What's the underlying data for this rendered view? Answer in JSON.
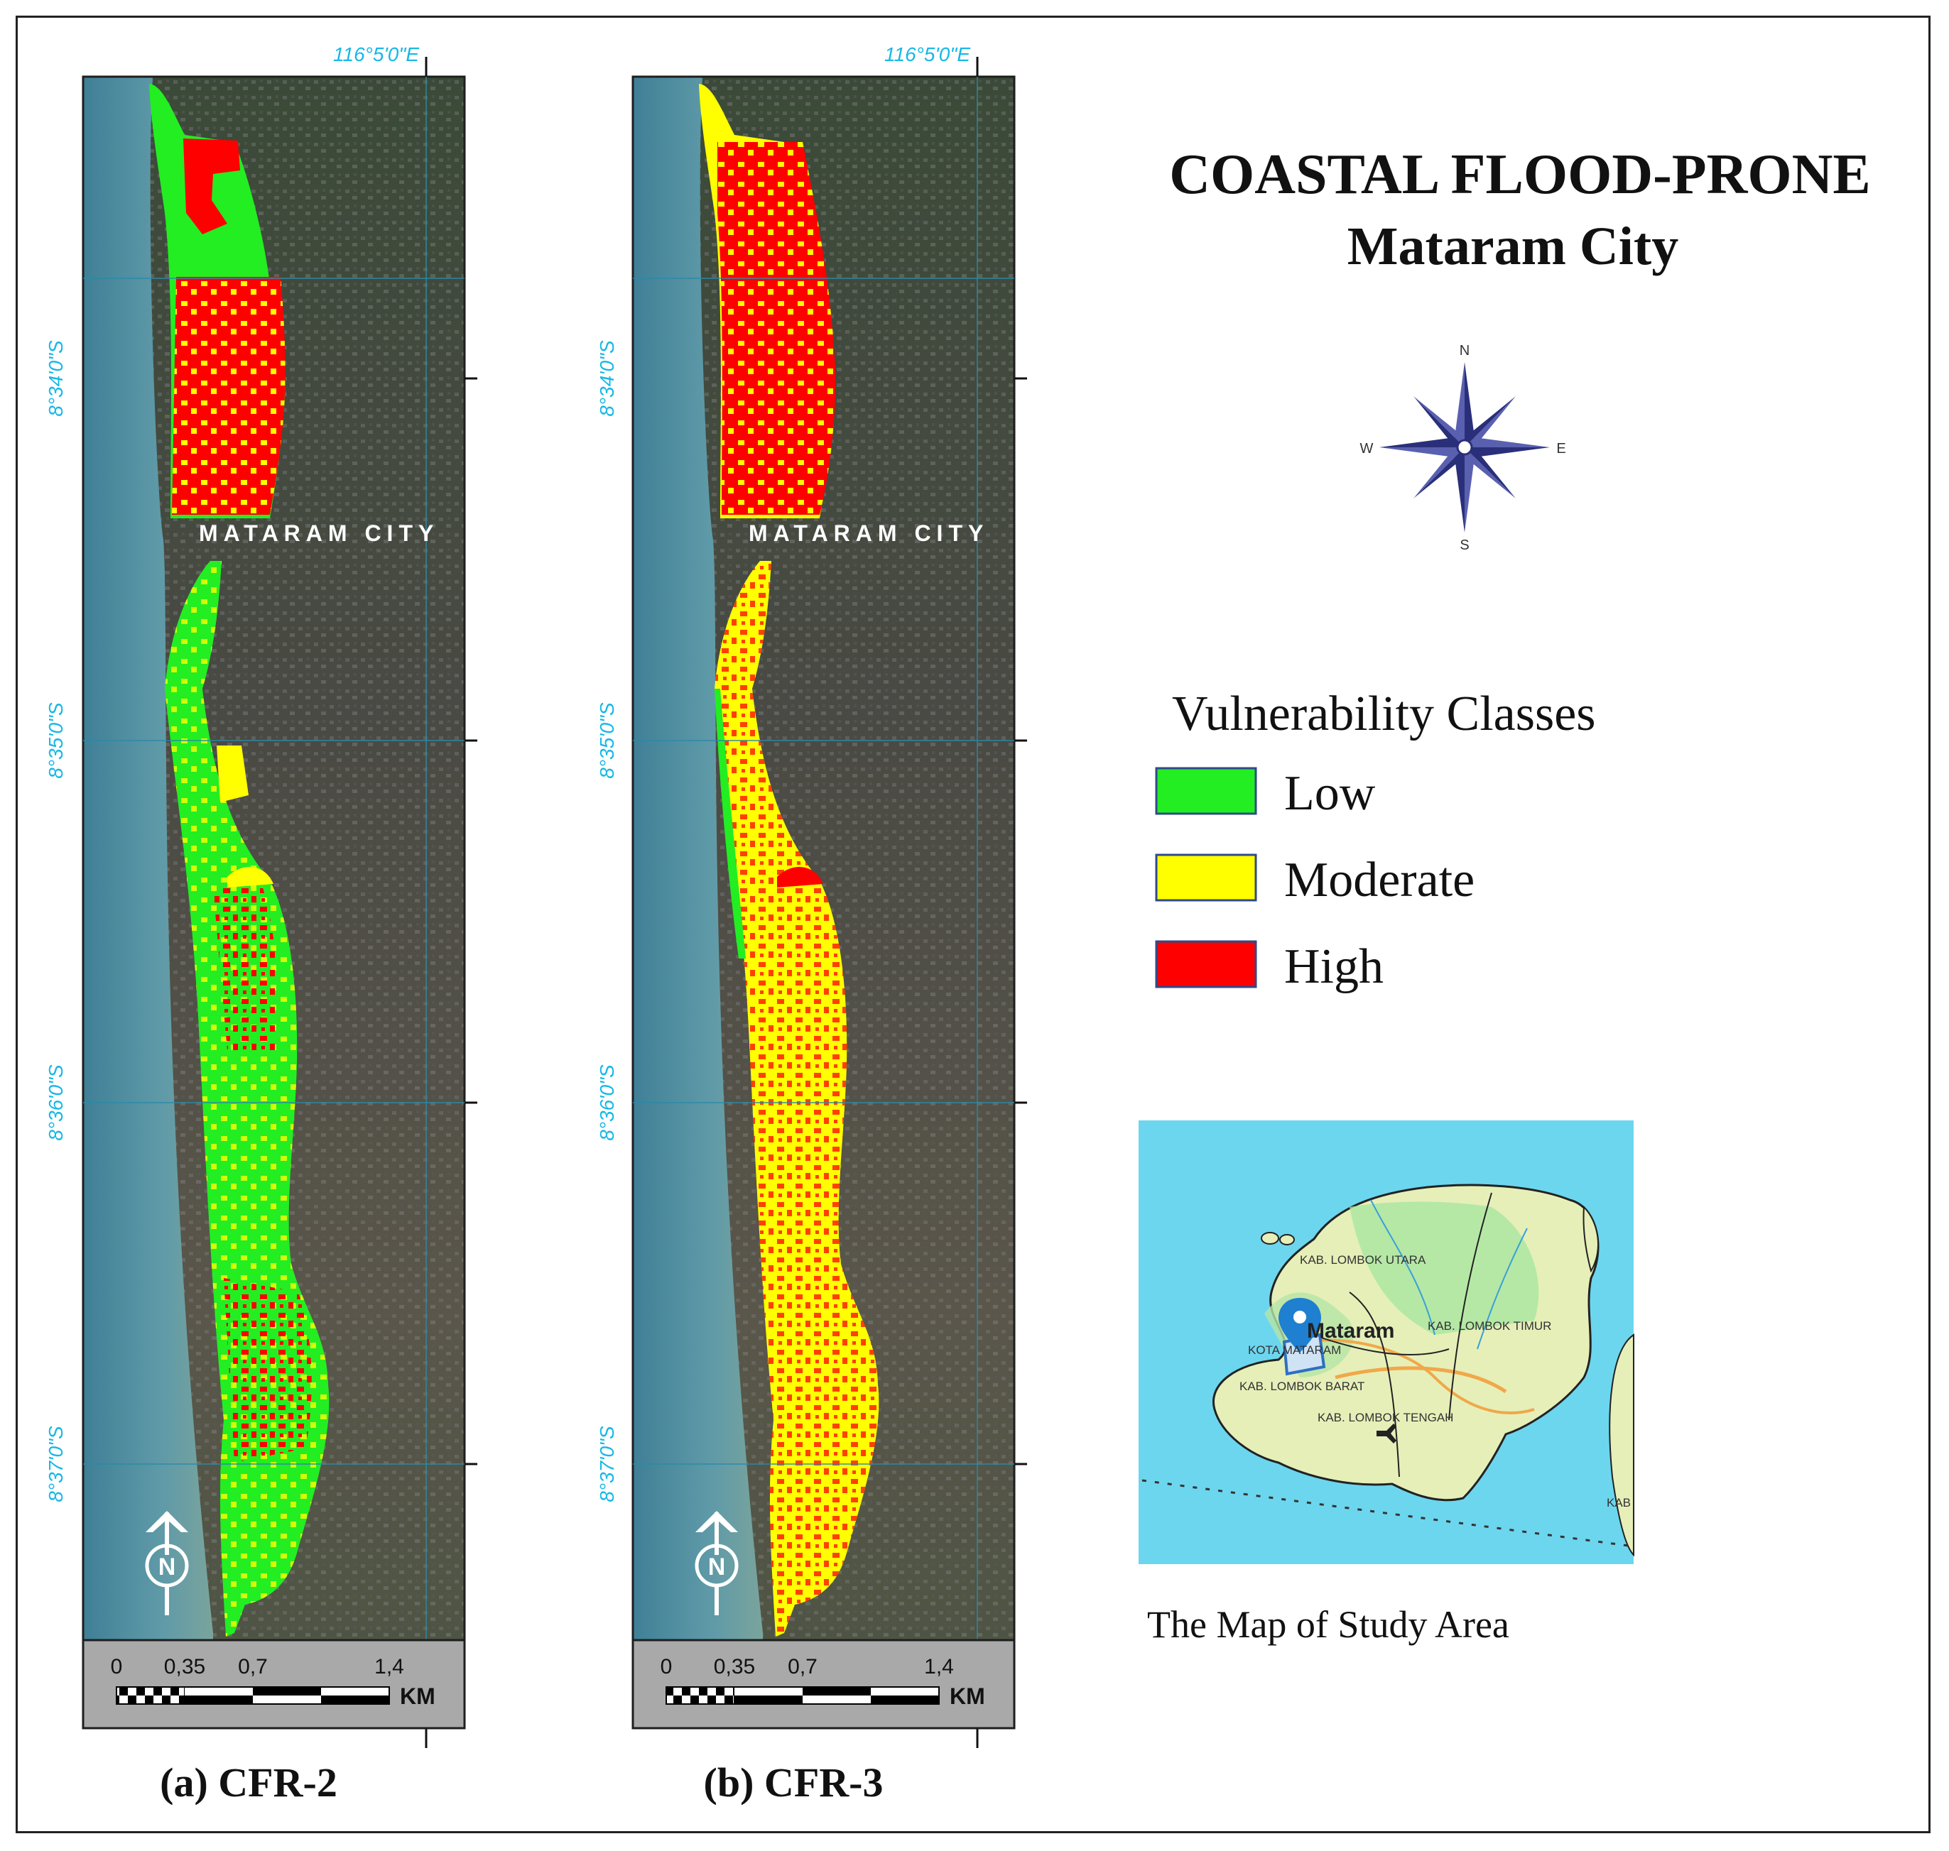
{
  "title": "COASTAL FLOOD-PRONE",
  "subtitle": "Mataram City",
  "legend": {
    "title": "Vulnerability Classes",
    "items": [
      {
        "label": "Low",
        "color": "#22ee22"
      },
      {
        "label": "Moderate",
        "color": "#ffff00"
      },
      {
        "label": "High",
        "color": "#ff0000"
      }
    ]
  },
  "panels": [
    {
      "caption": "(a) CFR-2",
      "longitude_label": "116°5'0\"E",
      "city_label": "MATARAM CITY",
      "north_letter": "N"
    },
    {
      "caption": "(b) CFR-3",
      "longitude_label": "116°5'0\"E",
      "city_label": "MATARAM CITY",
      "north_letter": "N"
    }
  ],
  "latitude_labels": [
    "8°34'0\"S",
    "8°35'0\"S",
    "8°36'0\"S",
    "8°37'0\"S"
  ],
  "scale_bar": {
    "ticks": [
      "0",
      "0,35",
      "0,7",
      "1,4"
    ],
    "unit": "KM"
  },
  "compass": {
    "n": "N",
    "s": "S",
    "e": "E",
    "w": "W"
  },
  "inset": {
    "caption": "The Map of  Study Area",
    "labels": [
      "KAB. LOMBOK UTARA",
      "Mataram",
      "KAB. LOMBOK TIMUR",
      "KOTA MATARAM",
      "KAB. LOMBOK BARAT",
      "KAB. LOMBOK TENGAH",
      "KAB"
    ]
  }
}
